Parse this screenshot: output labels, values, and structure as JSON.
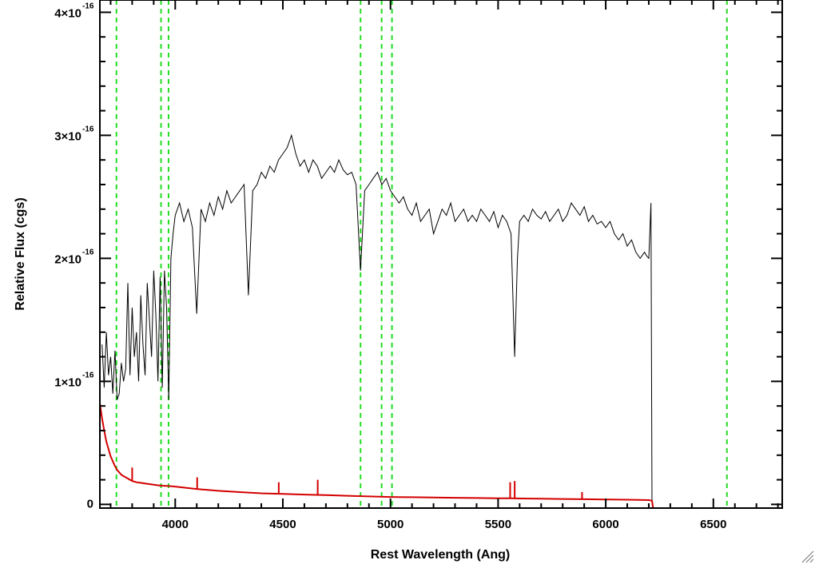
{
  "chart_data": {
    "type": "line",
    "title": "",
    "xlabel": "Rest Wavelength (Ang)",
    "ylabel": "Relative Flux (cgs)",
    "xlim": [
      3650,
      6820
    ],
    "ylim": [
      -3e-18,
      4.1e-16
    ],
    "xticks": [
      4000,
      4500,
      5000,
      5500,
      6000,
      6500
    ],
    "xtick_labels": [
      "4000",
      "4500",
      "5000",
      "5500",
      "6000",
      "6500"
    ],
    "yticks": [
      {
        "value": 0,
        "label": "0",
        "exp": ""
      },
      {
        "value": 1e-16,
        "label": "1×10",
        "exp": "-16"
      },
      {
        "value": 2e-16,
        "label": "2×10",
        "exp": "-16"
      },
      {
        "value": 3e-16,
        "label": "3×10",
        "exp": "-16"
      },
      {
        "value": 4e-16,
        "label": "4×10",
        "exp": "-16"
      }
    ],
    "vlines": [
      3727,
      3934,
      3969,
      4861,
      4959,
      5007,
      6563
    ],
    "series": [
      {
        "color": "#000000",
        "x": [
          3660,
          3670,
          3680,
          3690,
          3700,
          3710,
          3720,
          3730,
          3740,
          3750,
          3760,
          3770,
          3780,
          3790,
          3800,
          3810,
          3820,
          3830,
          3840,
          3850,
          3860,
          3870,
          3880,
          3890,
          3900,
          3910,
          3920,
          3930,
          3940,
          3950,
          3960,
          3970,
          3980,
          3990,
          4000,
          4020,
          4040,
          4060,
          4080,
          4100,
          4120,
          4140,
          4160,
          4180,
          4200,
          4220,
          4240,
          4260,
          4280,
          4300,
          4320,
          4340,
          4360,
          4380,
          4400,
          4420,
          4440,
          4460,
          4480,
          4500,
          4520,
          4540,
          4560,
          4580,
          4600,
          4620,
          4640,
          4660,
          4680,
          4700,
          4720,
          4740,
          4760,
          4780,
          4800,
          4820,
          4840,
          4861,
          4880,
          4900,
          4920,
          4940,
          4960,
          4980,
          5000,
          5020,
          5040,
          5060,
          5080,
          5100,
          5120,
          5140,
          5160,
          5180,
          5200,
          5220,
          5240,
          5260,
          5280,
          5300,
          5320,
          5340,
          5360,
          5380,
          5400,
          5420,
          5440,
          5460,
          5480,
          5500,
          5520,
          5540,
          5560,
          5577,
          5590,
          5600,
          5620,
          5640,
          5660,
          5680,
          5700,
          5720,
          5740,
          5760,
          5780,
          5800,
          5820,
          5840,
          5860,
          5880,
          5900,
          5920,
          5940,
          5960,
          5980,
          6000,
          6020,
          6040,
          6060,
          6080,
          6100,
          6120,
          6140,
          6160,
          6180,
          6190,
          6200,
          6210,
          6215,
          6220,
          6300,
          6400,
          6500,
          6600,
          6700,
          6820
        ],
        "y": [
          1.3,
          0.95,
          1.4,
          1.05,
          1.2,
          0.9,
          1.25,
          0.85,
          0.9,
          1.15,
          1.0,
          1.1,
          1.8,
          1.05,
          1.6,
          1.2,
          1.4,
          1.0,
          1.7,
          1.3,
          1.05,
          1.8,
          1.5,
          1.2,
          1.9,
          1.55,
          1.0,
          1.85,
          0.95,
          1.9,
          1.6,
          0.85,
          2.0,
          2.2,
          2.35,
          2.45,
          2.3,
          2.4,
          2.25,
          1.55,
          2.4,
          2.3,
          2.45,
          2.35,
          2.5,
          2.4,
          2.55,
          2.45,
          2.5,
          2.55,
          2.6,
          1.7,
          2.55,
          2.6,
          2.7,
          2.65,
          2.75,
          2.7,
          2.8,
          2.85,
          2.9,
          3.0,
          2.85,
          2.75,
          2.8,
          2.7,
          2.8,
          2.75,
          2.65,
          2.7,
          2.75,
          2.7,
          2.8,
          2.72,
          2.68,
          2.7,
          2.6,
          1.9,
          2.55,
          2.6,
          2.65,
          2.7,
          2.6,
          2.65,
          2.55,
          2.5,
          2.45,
          2.5,
          2.4,
          2.35,
          2.45,
          2.3,
          2.35,
          2.4,
          2.2,
          2.3,
          2.4,
          2.35,
          2.45,
          2.3,
          2.35,
          2.4,
          2.3,
          2.35,
          2.3,
          2.4,
          2.35,
          2.3,
          2.38,
          2.25,
          2.35,
          2.3,
          2.2,
          1.2,
          2.0,
          2.3,
          2.35,
          2.3,
          2.4,
          2.35,
          2.32,
          2.38,
          2.3,
          2.35,
          2.4,
          2.3,
          2.35,
          2.45,
          2.4,
          2.35,
          2.42,
          2.3,
          2.35,
          2.28,
          2.3,
          2.25,
          2.3,
          2.2,
          2.15,
          2.2,
          2.1,
          2.15,
          2.05,
          2.0,
          2.05,
          2.02,
          2.0,
          2.45,
          0.0,
          0.0,
          0.0,
          0.0,
          0.0,
          0.0,
          0.0,
          0.0
        ],
        "x_trim": 6215
      },
      {
        "color": "#d40000",
        "x": [
          3650,
          3660,
          3670,
          3680,
          3690,
          3700,
          3710,
          3720,
          3730,
          3740,
          3750,
          3760,
          3770,
          3780,
          3790,
          3800,
          3820,
          3840,
          3860,
          3880,
          3900,
          3920,
          3940,
          3960,
          3980,
          4000,
          4050,
          4100,
          4150,
          4200,
          4300,
          4400,
          4500,
          4600,
          4700,
          4800,
          4900,
          5000,
          5100,
          5200,
          5300,
          5400,
          5500,
          5560,
          5600,
          5700,
          5800,
          5900,
          6000,
          6100,
          6200,
          6215,
          6220,
          6300,
          6400,
          6500,
          6600,
          6700,
          6820
        ],
        "y": [
          0.82,
          0.7,
          0.6,
          0.51,
          0.45,
          0.39,
          0.35,
          0.31,
          0.28,
          0.26,
          0.24,
          0.23,
          0.22,
          0.21,
          0.2,
          0.19,
          0.18,
          0.175,
          0.17,
          0.165,
          0.16,
          0.155,
          0.152,
          0.15,
          0.148,
          0.145,
          0.135,
          0.125,
          0.118,
          0.11,
          0.1,
          0.09,
          0.085,
          0.08,
          0.075,
          0.07,
          0.065,
          0.06,
          0.058,
          0.056,
          0.054,
          0.052,
          0.05,
          0.05,
          0.048,
          0.046,
          0.044,
          0.042,
          0.04,
          0.038,
          0.035,
          0.03,
          -0.03,
          -0.03,
          -0.03,
          -0.03,
          -0.03,
          -0.03,
          -0.03
        ],
        "spikes": [
          {
            "x": 3800,
            "y": 0.3
          },
          {
            "x": 4102,
            "y": 0.22
          },
          {
            "x": 4481,
            "y": 0.18
          },
          {
            "x": 4662,
            "y": 0.2
          },
          {
            "x": 5556,
            "y": 0.18
          },
          {
            "x": 5577,
            "y": 0.19
          },
          {
            "x": 5890,
            "y": 0.1
          }
        ]
      }
    ]
  }
}
